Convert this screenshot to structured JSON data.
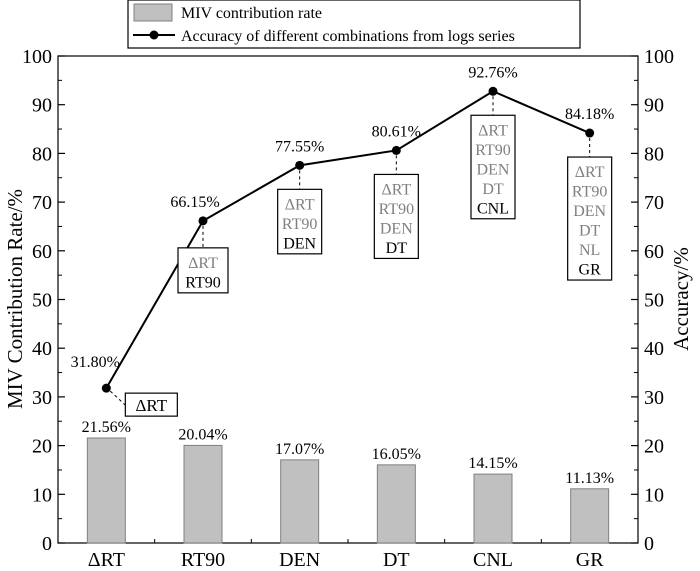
{
  "chart_data": {
    "type": "bar+line",
    "categories": [
      "ΔRT",
      "RT90",
      "DEN",
      "DT",
      "CNL",
      "GR"
    ],
    "ylabel_left": "MIV Contribution Rate/%",
    "ylabel_right": "Accuracy/%",
    "ylim_left": [
      0,
      100
    ],
    "ylim_right": [
      0,
      100
    ],
    "yticks": [
      "0",
      "10",
      "20",
      "30",
      "40",
      "50",
      "60",
      "70",
      "80",
      "90",
      "100"
    ],
    "legend": {
      "placement": "top-left",
      "bar_label": "MIV contribution rate",
      "line_label": "Accuracy of different combinations from logs series"
    },
    "bar_series": {
      "name": "MIV contribution rate",
      "values": [
        21.56,
        20.04,
        17.07,
        16.05,
        14.15,
        11.13
      ],
      "labels": [
        "21.56%",
        "20.04%",
        "17.07%",
        "16.05%",
        "14.15%",
        "11.13%"
      ],
      "color": "#c0c0c0"
    },
    "line_series": {
      "name": "Accuracy of different combinations from logs series",
      "values": [
        31.8,
        66.15,
        77.55,
        80.61,
        92.76,
        84.18
      ],
      "labels": [
        "31.80%",
        "66.15%",
        "77.55%",
        "80.61%",
        "92.76%",
        "84.18%"
      ],
      "color": "#000000"
    },
    "combinations": [
      {
        "previous": [],
        "added": "ΔRT"
      },
      {
        "previous": [
          "ΔRT"
        ],
        "added": "RT90"
      },
      {
        "previous": [
          "ΔRT",
          "RT90"
        ],
        "added": "DEN"
      },
      {
        "previous": [
          "ΔRT",
          "RT90",
          "DEN"
        ],
        "added": "DT"
      },
      {
        "previous": [
          "ΔRT",
          "RT90",
          "DEN",
          "DT"
        ],
        "added": "CNL"
      },
      {
        "previous": [
          "ΔRT",
          "RT90",
          "DEN",
          "DT",
          "NL"
        ],
        "added": "GR"
      }
    ],
    "colors": {
      "previous_text": "#808080",
      "added_text": "#000000"
    }
  }
}
